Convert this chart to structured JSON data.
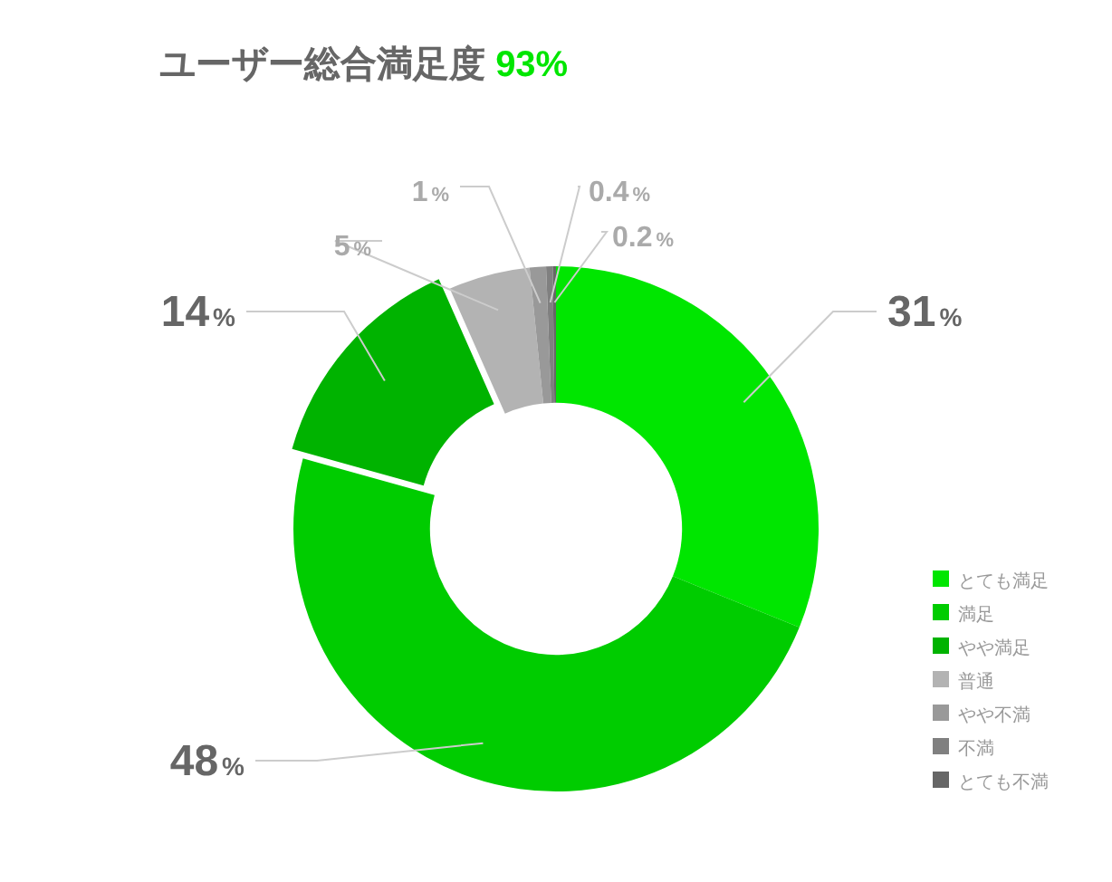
{
  "chart_data": {
    "type": "donut",
    "title": "ユーザー総合満足度 93%",
    "categories": [
      "とても満足",
      "満足",
      "やや満足",
      "普通",
      "やや不満",
      "不満",
      "とても不満"
    ],
    "values": [
      31,
      48,
      14,
      5,
      1,
      0.4,
      0.2
    ],
    "value_labels": [
      "31%",
      "48%",
      "14%",
      "5%",
      "1%",
      "0.4%",
      "0.2%"
    ],
    "colors": [
      "#00e600",
      "#00cc00",
      "#00b300",
      "#b3b3b3",
      "#999999",
      "#808080",
      "#666666"
    ],
    "legend": "bottom right"
  }
}
